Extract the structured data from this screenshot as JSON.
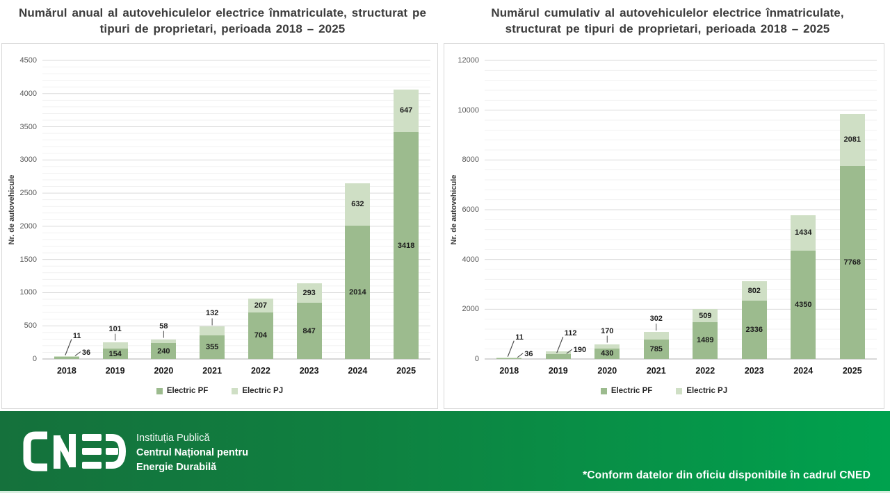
{
  "ylabel": "Nr. de autovehicule",
  "colors": {
    "pf": "#9cbb8e",
    "pj": "#cfdfc5",
    "grid_major": "#dadada",
    "grid_minor": "#f1f1f1",
    "axis_line": "#bfbfbf",
    "footer_green_dark": "#15713c",
    "footer_green_bright": "#00a24e"
  },
  "chart_data": [
    {
      "type": "bar",
      "stacked": true,
      "title": "Numărul anual al autovehiculelor electrice înmatriculate, structurat pe tipuri de proprietari, perioada 2018 – 2025",
      "ylabel": "Nr. de autovehicule",
      "ylim": [
        0,
        4500
      ],
      "ytick_step": 500,
      "grid": true,
      "legend_position": "bottom",
      "categories": [
        "2018",
        "2019",
        "2020",
        "2021",
        "2022",
        "2023",
        "2024",
        "2025"
      ],
      "series": [
        {
          "name": "Electric PF",
          "color": "#9cbb8e",
          "values": [
            36,
            154,
            240,
            355,
            704,
            847,
            2014,
            3418
          ]
        },
        {
          "name": "Electric PJ",
          "color": "#cfdfc5",
          "values": [
            11,
            101,
            58,
            132,
            207,
            293,
            632,
            647
          ]
        }
      ]
    },
    {
      "type": "bar",
      "stacked": true,
      "title": "Numărul cumulativ al autovehiculelor electrice înmatriculate, structurat pe tipuri de proprietari, perioada 2018 – 2025",
      "ylabel": "Nr. de autovehicule",
      "ylim": [
        0,
        12000
      ],
      "ytick_step": 2000,
      "grid": true,
      "legend_position": "bottom",
      "categories": [
        "2018",
        "2019",
        "2020",
        "2021",
        "2022",
        "2023",
        "2024",
        "2025"
      ],
      "series": [
        {
          "name": "Electric PF",
          "color": "#9cbb8e",
          "values": [
            36,
            190,
            430,
            785,
            1489,
            2336,
            4350,
            7768
          ]
        },
        {
          "name": "Electric PJ",
          "color": "#cfdfc5",
          "values": [
            11,
            112,
            170,
            302,
            509,
            802,
            1434,
            2081
          ]
        }
      ]
    }
  ],
  "footer": {
    "logo": "CNED",
    "org_line1": "Instituția Publică",
    "org_line2": "Centrul Național pentru",
    "org_line3": "Energie Durabilă",
    "note": "*Conform datelor din oficiu disponibile în cadrul CNED"
  }
}
